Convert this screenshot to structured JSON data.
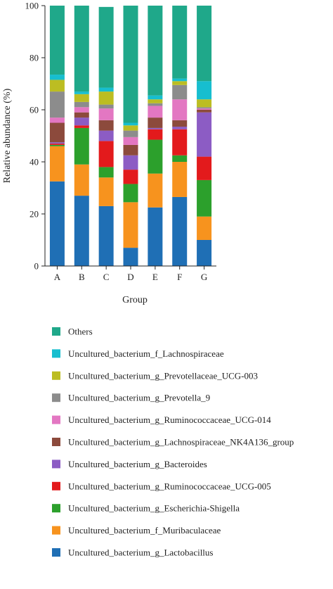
{
  "chart_data": {
    "type": "stacked-bar",
    "categories": [
      "A",
      "B",
      "C",
      "D",
      "E",
      "F",
      "G"
    ],
    "xlabel": "Group",
    "ylabel": "Relative abundance (%)",
    "ylim": [
      0,
      100
    ],
    "yticks": [
      0,
      20,
      40,
      60,
      80,
      100
    ],
    "grid": false,
    "legend_position": "bottom",
    "series": [
      {
        "name": "Uncultured_bacterium_g_Lactobacillus",
        "color": "#1f6fb5",
        "values": [
          32.5,
          27,
          23,
          7,
          22.5,
          26.5,
          10
        ]
      },
      {
        "name": "Uncultured_bacterium_f_Muribaculaceae",
        "color": "#f7931e",
        "values": [
          13.5,
          12,
          11,
          17.5,
          13,
          13.5,
          9
        ]
      },
      {
        "name": "Uncultured_bacterium_g_Escherichia-Shigella",
        "color": "#2ca02c",
        "values": [
          0.5,
          14,
          4,
          7,
          13,
          2.5,
          14
        ]
      },
      {
        "name": "Uncultured_bacterium_g_Ruminococcaceae_UCG-005",
        "color": "#e31a1c",
        "values": [
          0.5,
          1,
          10,
          5.5,
          4,
          10,
          9
        ]
      },
      {
        "name": "Uncultured_bacterium_g_Bacteroides",
        "color": "#8c5cc4",
        "values": [
          0.5,
          3,
          4,
          5.5,
          0.5,
          1,
          17
        ]
      },
      {
        "name": "Uncultured_bacterium_g_Lachnospiraceae_NK4A136_group",
        "color": "#8c4a3c",
        "values": [
          7.5,
          2,
          4,
          4,
          4,
          2.5,
          1
        ]
      },
      {
        "name": "Uncultured_bacterium_g_Ruminococcaceae_UCG-014",
        "color": "#e377c2",
        "values": [
          2,
          2,
          4.5,
          3,
          4.5,
          8,
          0.5
        ]
      },
      {
        "name": "Uncultured_bacterium_g_Prevotella_9",
        "color": "#8c8c8c",
        "values": [
          10,
          2,
          1.5,
          2.5,
          1,
          5.5,
          0.5
        ]
      },
      {
        "name": "Uncultured_bacterium_g_Prevotellaceae_UCG-003",
        "color": "#bcbd22",
        "values": [
          4.5,
          3,
          5,
          2,
          1.5,
          1.5,
          3
        ]
      },
      {
        "name": "Uncultured_bacterium_f_Lachnospiraceae",
        "color": "#17becf",
        "values": [
          2,
          1,
          1.5,
          1,
          1.5,
          1,
          7
        ]
      },
      {
        "name": "Others",
        "color": "#1fa88a",
        "values": [
          26.5,
          33,
          31,
          45,
          34.5,
          28,
          29
        ]
      }
    ]
  }
}
